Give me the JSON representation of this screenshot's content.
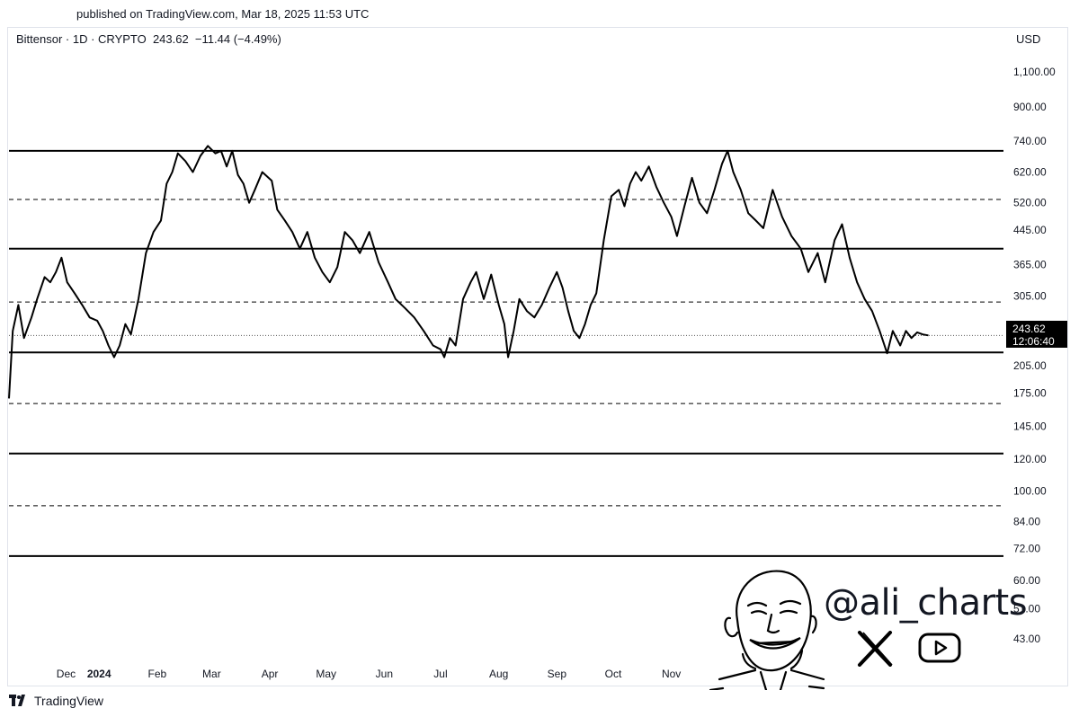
{
  "header": {
    "published": "published on TradingView.com, Mar 18, 2025 11:53 UTC",
    "symbol_line": "Bittensor · 1D · CRYPTO  243.62  −11.44 (−4.49%)"
  },
  "axis": {
    "currency": "USD"
  },
  "price_tag": {
    "value": "243.62",
    "countdown": "12:06:40"
  },
  "footer": {
    "brand": "TradingView"
  },
  "watermark": {
    "handle": "@ali_charts",
    "icons": [
      "x-logo-icon",
      "youtube-icon",
      "meme-face-drawing"
    ]
  },
  "colors": {
    "line": "#000000",
    "background": "#ffffff",
    "grid_dotted": "#555555",
    "tag_bg": "#000000",
    "tag_text": "#ffffff"
  },
  "chart_data": {
    "type": "line",
    "scale": "log",
    "ylim": [
      38,
      1250
    ],
    "y_ticks": [
      {
        "v": 1100,
        "label": "1,100.00"
      },
      {
        "v": 900,
        "label": "900.00"
      },
      {
        "v": 740,
        "label": "740.00"
      },
      {
        "v": 620,
        "label": "620.00"
      },
      {
        "v": 520,
        "label": "520.00"
      },
      {
        "v": 445,
        "label": "445.00"
      },
      {
        "v": 365,
        "label": "365.00"
      },
      {
        "v": 305,
        "label": "305.00"
      },
      {
        "v": 205,
        "label": "205.00"
      },
      {
        "v": 175,
        "label": "175.00"
      },
      {
        "v": 145,
        "label": "145.00"
      },
      {
        "v": 120,
        "label": "120.00"
      },
      {
        "v": 100,
        "label": "100.00"
      },
      {
        "v": 84,
        "label": "84.00"
      },
      {
        "v": 72,
        "label": "72.00"
      },
      {
        "v": 60,
        "label": "60.00"
      },
      {
        "v": 51,
        "label": "51.00"
      },
      {
        "v": 43,
        "label": "43.00"
      }
    ],
    "x_ticks": [
      {
        "label": "Dec",
        "date": "2023-12-01"
      },
      {
        "label": "2024",
        "date": "2024-01-01",
        "bold": true
      },
      {
        "label": "Feb",
        "date": "2024-02-01"
      },
      {
        "label": "Mar",
        "date": "2024-03-01"
      },
      {
        "label": "Apr",
        "date": "2024-04-01"
      },
      {
        "label": "May",
        "date": "2024-05-01"
      },
      {
        "label": "Jun",
        "date": "2024-06-01"
      },
      {
        "label": "Jul",
        "date": "2024-07-01"
      },
      {
        "label": "Aug",
        "date": "2024-08-01"
      },
      {
        "label": "Sep",
        "date": "2024-09-01"
      },
      {
        "label": "Oct",
        "date": "2024-10-01"
      },
      {
        "label": "Nov",
        "date": "2024-11-01"
      }
    ],
    "xlim": [
      "2023-11-14",
      "2025-04-27"
    ],
    "horizontal_levels": [
      {
        "price": 700,
        "style": "solid"
      },
      {
        "price": 530,
        "style": "dashed"
      },
      {
        "price": 400,
        "style": "solid"
      },
      {
        "price": 295,
        "style": "dashed"
      },
      {
        "price": 243.62,
        "style": "dotted"
      },
      {
        "price": 221,
        "style": "solid"
      },
      {
        "price": 165,
        "style": "dashed"
      },
      {
        "price": 124,
        "style": "solid"
      },
      {
        "price": 92,
        "style": "dashed"
      },
      {
        "price": 69,
        "style": "solid"
      }
    ],
    "series": [
      {
        "points": [
          [
            "2023-11-14",
            170
          ],
          [
            "2023-11-16",
            250
          ],
          [
            "2023-11-19",
            290
          ],
          [
            "2023-11-22",
            240
          ],
          [
            "2023-11-26",
            270
          ],
          [
            "2023-11-29",
            300
          ],
          [
            "2023-12-03",
            340
          ],
          [
            "2023-12-06",
            330
          ],
          [
            "2023-12-09",
            350
          ],
          [
            "2023-12-12",
            380
          ],
          [
            "2023-12-15",
            330
          ],
          [
            "2023-12-19",
            310
          ],
          [
            "2023-12-23",
            290
          ],
          [
            "2023-12-27",
            270
          ],
          [
            "2023-12-31",
            265
          ],
          [
            "2024-01-03",
            250
          ],
          [
            "2024-01-06",
            230
          ],
          [
            "2024-01-09",
            215
          ],
          [
            "2024-01-12",
            230
          ],
          [
            "2024-01-15",
            260
          ],
          [
            "2024-01-18",
            245
          ],
          [
            "2024-01-22",
            300
          ],
          [
            "2024-01-26",
            390
          ],
          [
            "2024-01-30",
            440
          ],
          [
            "2024-02-03",
            470
          ],
          [
            "2024-02-06",
            580
          ],
          [
            "2024-02-09",
            620
          ],
          [
            "2024-02-12",
            690
          ],
          [
            "2024-02-16",
            660
          ],
          [
            "2024-02-20",
            620
          ],
          [
            "2024-02-24",
            680
          ],
          [
            "2024-02-28",
            720
          ],
          [
            "2024-03-03",
            690
          ],
          [
            "2024-03-06",
            700
          ],
          [
            "2024-03-09",
            640
          ],
          [
            "2024-03-12",
            700
          ],
          [
            "2024-03-15",
            610
          ],
          [
            "2024-03-18",
            580
          ],
          [
            "2024-03-21",
            520
          ],
          [
            "2024-03-24",
            560
          ],
          [
            "2024-03-28",
            620
          ],
          [
            "2024-04-02",
            590
          ],
          [
            "2024-04-05",
            500
          ],
          [
            "2024-04-09",
            470
          ],
          [
            "2024-04-13",
            440
          ],
          [
            "2024-04-17",
            400
          ],
          [
            "2024-04-21",
            440
          ],
          [
            "2024-04-25",
            380
          ],
          [
            "2024-04-29",
            350
          ],
          [
            "2024-05-03",
            330
          ],
          [
            "2024-05-07",
            360
          ],
          [
            "2024-05-11",
            440
          ],
          [
            "2024-05-15",
            420
          ],
          [
            "2024-05-19",
            390
          ],
          [
            "2024-05-24",
            440
          ],
          [
            "2024-05-29",
            370
          ],
          [
            "2024-06-03",
            330
          ],
          [
            "2024-06-07",
            300
          ],
          [
            "2024-06-12",
            285
          ],
          [
            "2024-06-17",
            270
          ],
          [
            "2024-06-22",
            250
          ],
          [
            "2024-06-27",
            230
          ],
          [
            "2024-07-01",
            225
          ],
          [
            "2024-07-03",
            215
          ],
          [
            "2024-07-06",
            240
          ],
          [
            "2024-07-09",
            230
          ],
          [
            "2024-07-13",
            300
          ],
          [
            "2024-07-17",
            330
          ],
          [
            "2024-07-20",
            350
          ],
          [
            "2024-07-24",
            300
          ],
          [
            "2024-07-28",
            345
          ],
          [
            "2024-08-01",
            290
          ],
          [
            "2024-08-04",
            260
          ],
          [
            "2024-08-06",
            215
          ],
          [
            "2024-08-09",
            250
          ],
          [
            "2024-08-12",
            300
          ],
          [
            "2024-08-16",
            280
          ],
          [
            "2024-08-20",
            270
          ],
          [
            "2024-08-24",
            290
          ],
          [
            "2024-08-28",
            320
          ],
          [
            "2024-09-01",
            350
          ],
          [
            "2024-09-04",
            320
          ],
          [
            "2024-09-07",
            280
          ],
          [
            "2024-09-10",
            250
          ],
          [
            "2024-09-13",
            240
          ],
          [
            "2024-09-16",
            260
          ],
          [
            "2024-09-19",
            290
          ],
          [
            "2024-09-22",
            310
          ],
          [
            "2024-09-26",
            420
          ],
          [
            "2024-09-30",
            540
          ],
          [
            "2024-10-04",
            560
          ],
          [
            "2024-10-07",
            510
          ],
          [
            "2024-10-10",
            580
          ],
          [
            "2024-10-13",
            620
          ],
          [
            "2024-10-16",
            590
          ],
          [
            "2024-10-20",
            640
          ],
          [
            "2024-10-24",
            570
          ],
          [
            "2024-10-28",
            520
          ],
          [
            "2024-11-01",
            480
          ],
          [
            "2024-11-04",
            430
          ],
          [
            "2024-11-08",
            510
          ],
          [
            "2024-11-12",
            600
          ],
          [
            "2024-11-16",
            520
          ],
          [
            "2024-11-20",
            490
          ],
          [
            "2024-11-24",
            560
          ],
          [
            "2024-11-28",
            650
          ],
          [
            "2024-12-01",
            700
          ],
          [
            "2024-12-04",
            620
          ],
          [
            "2024-12-08",
            560
          ],
          [
            "2024-12-12",
            490
          ],
          [
            "2024-12-16",
            470
          ],
          [
            "2024-12-20",
            450
          ],
          [
            "2024-12-25",
            560
          ],
          [
            "2024-12-30",
            480
          ],
          [
            "2025-01-04",
            430
          ],
          [
            "2025-01-09",
            400
          ],
          [
            "2025-01-13",
            350
          ],
          [
            "2025-01-18",
            390
          ],
          [
            "2025-01-22",
            330
          ],
          [
            "2025-01-27",
            420
          ],
          [
            "2025-01-31",
            460
          ],
          [
            "2025-02-04",
            380
          ],
          [
            "2025-02-08",
            330
          ],
          [
            "2025-02-12",
            300
          ],
          [
            "2025-02-16",
            280
          ],
          [
            "2025-02-20",
            250
          ],
          [
            "2025-02-24",
            220
          ],
          [
            "2025-02-27",
            250
          ],
          [
            "2025-03-03",
            230
          ],
          [
            "2025-03-06",
            250
          ],
          [
            "2025-03-09",
            240
          ],
          [
            "2025-03-12",
            248
          ],
          [
            "2025-03-15",
            245
          ],
          [
            "2025-03-18",
            243.62
          ]
        ]
      }
    ]
  }
}
